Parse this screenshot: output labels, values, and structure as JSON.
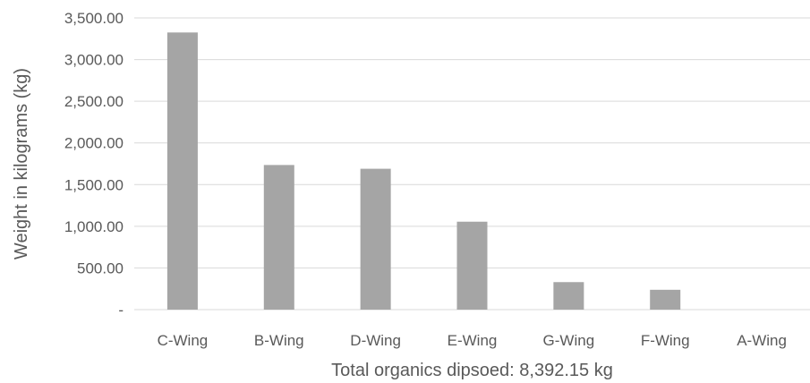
{
  "chart_data": {
    "type": "bar",
    "categories": [
      "C-Wing",
      "B-Wing",
      "D-Wing",
      "E-Wing",
      "G-Wing",
      "F-Wing",
      "A-Wing"
    ],
    "series": [
      {
        "values": [
          3325,
          1735,
          1690,
          1055,
          330,
          238,
          0
        ]
      }
    ],
    "title": "",
    "xlabel": "Total organics dipsoed: 8,392.15 kg",
    "ylabel": "Weight in kilograms (kg)",
    "ylim": [
      0,
      3500
    ],
    "y_ticks": [
      0,
      500,
      1000,
      1500,
      2000,
      2500,
      3000,
      3500
    ],
    "y_tick_labels": [
      "-",
      "500.00",
      "1,000.00",
      "1,500.00",
      "2,000.00",
      "2,500.00",
      "3,000.00",
      "3,500.00"
    ],
    "bar_color": "#a5a5a5",
    "grid": true,
    "legend": "none"
  }
}
